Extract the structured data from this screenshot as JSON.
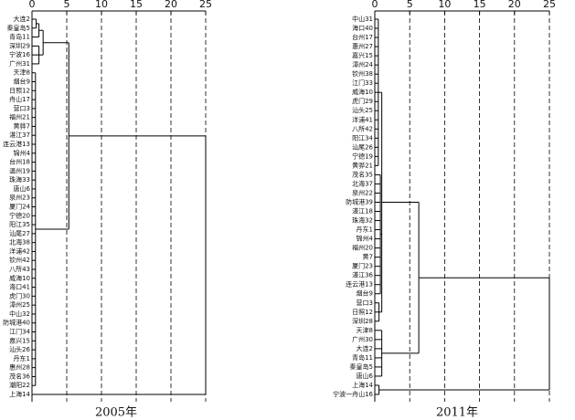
{
  "chart_data": [
    {
      "type": "dendrogram",
      "caption": "2005年",
      "xlim": [
        0,
        25
      ],
      "xticks": [
        0,
        5,
        10,
        15,
        20,
        25
      ],
      "grid": true,
      "tree": {
        "height": 25,
        "children": [
          {
            "height": 5.3,
            "children": [
              {
                "height": 1.6,
                "children": [
                  {
                    "height": 1.0,
                    "children": [
                      {
                        "height": 0.6,
                        "children": [
                          "大连2",
                          "秦皇岛5"
                        ]
                      },
                      "青岛11"
                    ]
                  },
                  {
                    "height": 1.0,
                    "children": [
                      "深圳29",
                      "宁波16",
                      "广州31"
                    ]
                  }
                ]
              },
              {
                "height": 0.5,
                "children": [
                  "天津8",
                  "烟台9",
                  "日照12",
                  "舟山17",
                  "营口3",
                  "福州21",
                  "黄骅7",
                  "湛江37",
                  "连云港13",
                  "锦州4",
                  "台州18",
                  "温州19",
                  "珠海33",
                  "唐山6",
                  "泉州23",
                  "厦门24",
                  "宁德20",
                  "阳江35",
                  "汕尾27",
                  "北海38",
                  "洋浦42",
                  "钦州42",
                  "八所43",
                  "威海10",
                  "海口41",
                  "虎门30",
                  "漳州25",
                  "中山32",
                  "防城港40",
                  "江门34",
                  "嘉兴15",
                  "汕头26",
                  "丹东1",
                  "惠州28",
                  "茂名36",
                  "潮阳22"
                ]
              }
            ]
          },
          "上海14"
        ]
      }
    },
    {
      "type": "dendrogram",
      "caption": "2011年",
      "xlim": [
        0,
        25
      ],
      "xticks": [
        0,
        5,
        10,
        15,
        20,
        25
      ],
      "grid": true,
      "tree": {
        "height": 25,
        "children": [
          {
            "height": 6.3,
            "children": [
              {
                "height": 1.0,
                "children": [
                  {
                    "height": 0.5,
                    "children": [
                      "中山31",
                      "海口40",
                      "台州17",
                      "惠州27",
                      "嘉兴15",
                      "漳州24",
                      "钦州38",
                      "江门33",
                      "威海10",
                      "虎门29",
                      "汕头25",
                      "洋浦41",
                      "八所42",
                      "阳江34",
                      "汕尾26",
                      "宁德19",
                      "黄骅21"
                    ]
                  },
                  {
                    "height": 0.8,
                    "children": [
                      "茂名35",
                      "北海37",
                      "泉州22",
                      "防城港39",
                      "湛江18",
                      "珠海32",
                      "丹东1",
                      "锦州4",
                      "福州20",
                      "黄7",
                      "厦门23",
                      "湛江36",
                      "连云港13",
                      "烟台9"
                    ]
                  },
                  {
                    "height": 0.6,
                    "children": [
                      "营口3",
                      "日照12",
                      "深圳28"
                    ]
                  }
                ]
              },
              {
                "height": 1.0,
                "children": [
                  "天津8",
                  "广州30",
                  "大连2",
                  "青岛11",
                  "秦皇岛5",
                  "唐山6"
                ]
              }
            ]
          },
          {
            "height": 0.6,
            "children": [
              "上海14",
              "宁波一舟山16"
            ]
          }
        ]
      }
    }
  ]
}
